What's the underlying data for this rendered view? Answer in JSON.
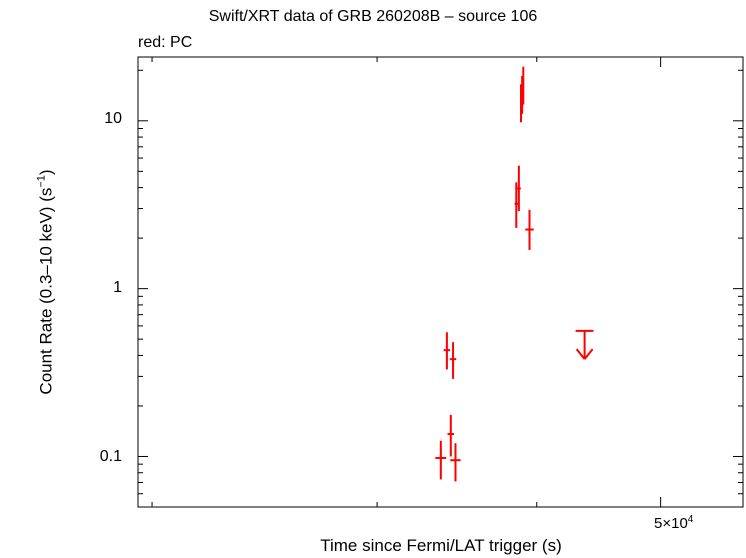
{
  "chart_data": {
    "type": "scatter",
    "title": "Swift/XRT data of GRB 260208B – source 106",
    "subtitle": "red: PC",
    "xlabel": "Time since Fermi/LAT trigger (s)",
    "ylabel_main": "Count Rate (0.3–10 keV) (s",
    "ylabel_exp": "−1",
    "ylabel_end": ")",
    "x_scale": "log",
    "y_scale": "log",
    "xlim": [
      19500,
      58000
    ],
    "ylim": [
      0.05,
      24
    ],
    "x_tick_label": "5×10",
    "x_tick_label_exp": "4",
    "y_tick_labels": [
      "0.1",
      "1",
      "10"
    ],
    "y_major_ticks": [
      0.1,
      1,
      10
    ],
    "grid": false,
    "legend": "none",
    "color": "#ff0000",
    "points": [
      {
        "x": 33650,
        "xerr": 330,
        "y": 0.098,
        "ylo": 0.073,
        "yhi": 0.124
      },
      {
        "x": 34260,
        "xerr": 200,
        "y": 0.136,
        "ylo": 0.1,
        "yhi": 0.177
      },
      {
        "x": 34550,
        "xerr": 320,
        "y": 0.095,
        "ylo": 0.071,
        "yhi": 0.12
      },
      {
        "x": 34020,
        "xerr": 200,
        "y": 0.43,
        "ylo": 0.33,
        "yhi": 0.55
      },
      {
        "x": 34400,
        "xerr": 200,
        "y": 0.38,
        "ylo": 0.29,
        "yhi": 0.48
      },
      {
        "x": 38550,
        "xerr": 120,
        "y": 3.2,
        "ylo": 2.3,
        "yhi": 4.3
      },
      {
        "x": 38730,
        "xerr": 140,
        "y": 3.95,
        "ylo": 2.9,
        "yhi": 5.4
      },
      {
        "x": 38880,
        "xerr": 60,
        "y": 12.6,
        "ylo": 9.8,
        "yhi": 16.5
      },
      {
        "x": 38960,
        "xerr": 60,
        "y": 14.5,
        "ylo": 11,
        "yhi": 18.5
      },
      {
        "x": 39040,
        "xerr": 60,
        "y": 16.2,
        "ylo": 12.5,
        "yhi": 21
      },
      {
        "x": 39480,
        "xerr": 300,
        "y": 2.25,
        "ylo": 1.7,
        "yhi": 2.95
      }
    ],
    "upper_limits": [
      {
        "x": 43600,
        "xerr": 700,
        "y": 0.56,
        "arrow_to": 0.38
      }
    ]
  }
}
